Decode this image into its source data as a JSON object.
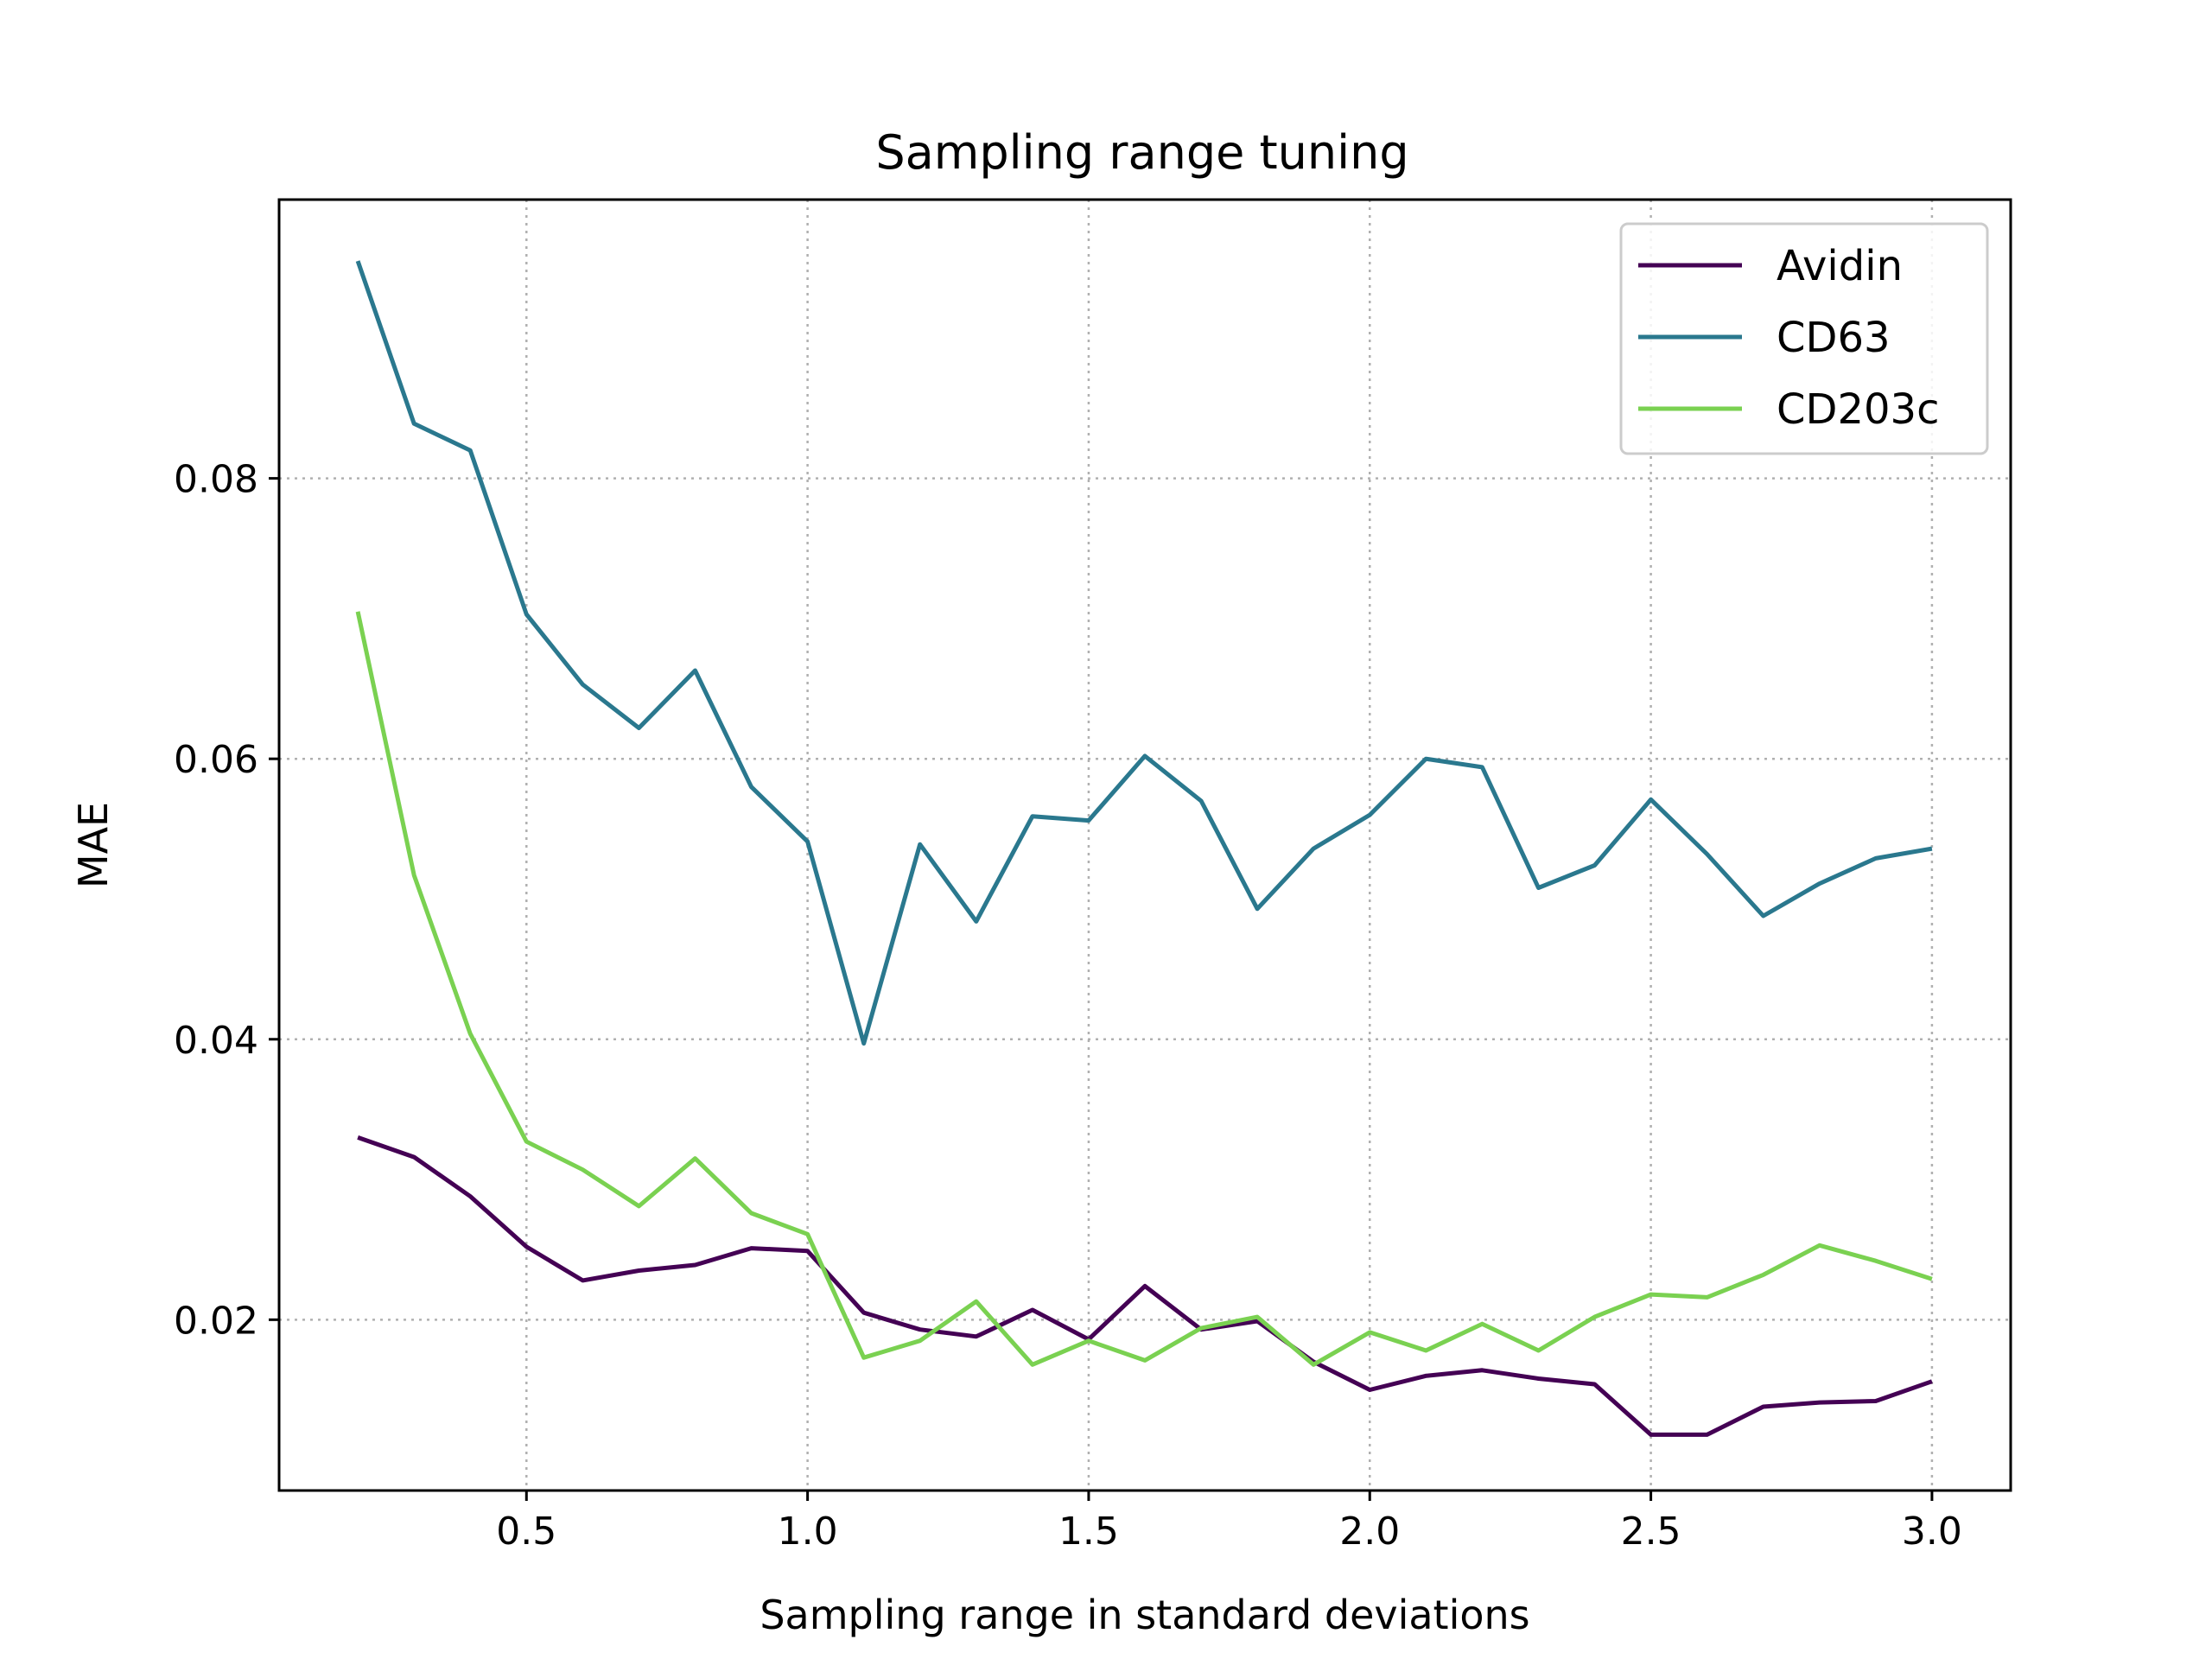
{
  "chart_data": {
    "type": "line",
    "title": "Sampling range tuning",
    "xlabel": "Sampling range in standard deviations",
    "ylabel": "MAE",
    "xlim": [
      0.06,
      3.14
    ],
    "ylim": [
      0.00782,
      0.09988
    ],
    "xticks": [
      {
        "value": 0.5,
        "label": "0.5"
      },
      {
        "value": 1.0,
        "label": "1.0"
      },
      {
        "value": 1.5,
        "label": "1.5"
      },
      {
        "value": 2.0,
        "label": "2.0"
      },
      {
        "value": 2.5,
        "label": "2.5"
      },
      {
        "value": 3.0,
        "label": "3.0"
      }
    ],
    "yticks": [
      {
        "value": 0.02,
        "label": "0.02"
      },
      {
        "value": 0.04,
        "label": "0.04"
      },
      {
        "value": 0.06,
        "label": "0.06"
      },
      {
        "value": 0.08,
        "label": "0.08"
      }
    ],
    "grid": true,
    "legend_position": "top-right",
    "x": [
      0.2,
      0.3,
      0.4,
      0.5,
      0.6,
      0.7,
      0.8,
      0.9,
      1.0,
      1.1,
      1.2,
      1.3,
      1.4,
      1.5,
      1.6,
      1.7,
      1.8,
      1.9,
      2.0,
      2.1,
      2.2,
      2.3,
      2.4,
      2.5,
      2.6,
      2.7,
      2.8,
      2.9,
      3.0
    ],
    "series": [
      {
        "name": "Avidin",
        "color": "#440154",
        "values": [
          0.033,
          0.0316,
          0.0288,
          0.0252,
          0.0228,
          0.0235,
          0.0239,
          0.0251,
          0.0249,
          0.0205,
          0.0193,
          0.0188,
          0.0207,
          0.0186,
          0.0224,
          0.0193,
          0.0199,
          0.017,
          0.015,
          0.016,
          0.0164,
          0.0158,
          0.0154,
          0.0118,
          0.0118,
          0.0138,
          0.0141,
          0.0142,
          0.0156
        ]
      },
      {
        "name": "CD63",
        "color": "#2a788e",
        "values": [
          0.0955,
          0.0839,
          0.082,
          0.0703,
          0.0653,
          0.0622,
          0.0663,
          0.058,
          0.0541,
          0.0397,
          0.0539,
          0.0484,
          0.0559,
          0.0556,
          0.0602,
          0.057,
          0.0493,
          0.0536,
          0.056,
          0.06,
          0.0594,
          0.0508,
          0.0524,
          0.0571,
          0.0532,
          0.0488,
          0.0511,
          0.0529,
          0.0536
        ]
      },
      {
        "name": "CD203c",
        "color": "#7ad151",
        "values": [
          0.0705,
          0.0517,
          0.0404,
          0.0327,
          0.0307,
          0.0281,
          0.0315,
          0.0276,
          0.0261,
          0.0173,
          0.0185,
          0.0213,
          0.0168,
          0.0185,
          0.0171,
          0.0194,
          0.0202,
          0.0168,
          0.0191,
          0.0178,
          0.0197,
          0.0178,
          0.0202,
          0.0218,
          0.0216,
          0.0232,
          0.0253,
          0.0242,
          0.0229
        ]
      }
    ]
  }
}
